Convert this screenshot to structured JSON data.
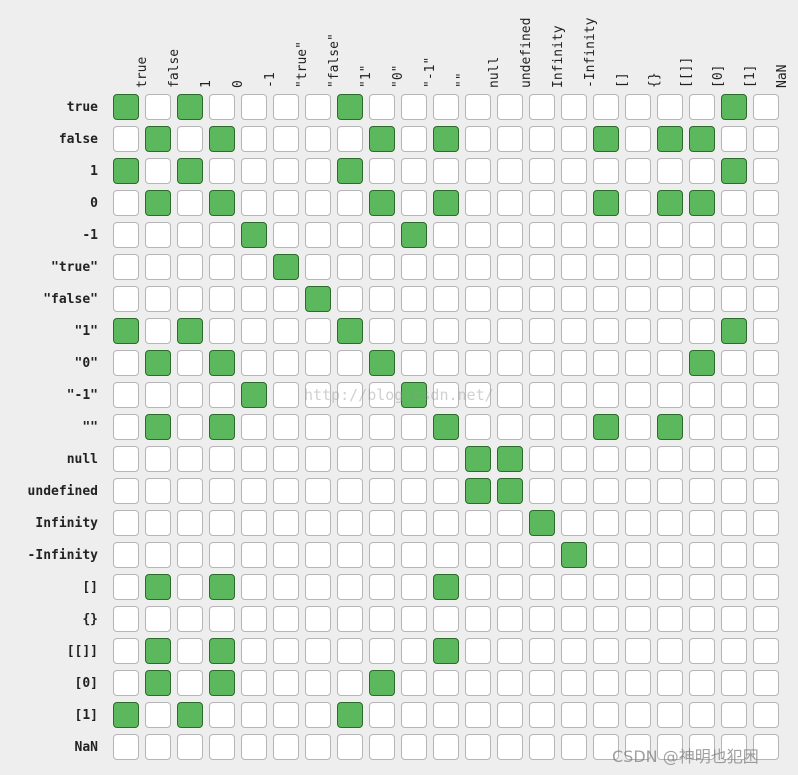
{
  "rows": [
    "true",
    "false",
    "1",
    "0",
    "-1",
    "\"true\"",
    "\"false\"",
    "\"1\"",
    "\"0\"",
    "\"-1\"",
    "\"\"",
    "null",
    "undefined",
    "Infinity",
    "-Infinity",
    "[]",
    "{}",
    "[[]]",
    "[0]",
    "[1]",
    "NaN"
  ],
  "columns": [
    "true",
    "false",
    "1",
    "0",
    "-1",
    "\"true\"",
    "\"false\"",
    "\"1\"",
    "\"0\"",
    "\"-1\"",
    "\"\"",
    "null",
    "undefined",
    "Infinity",
    "-Infinity",
    "[]",
    "{}",
    "[[]]",
    "[0]",
    "[1]",
    "NaN"
  ],
  "matrix": [
    [
      1,
      0,
      1,
      0,
      0,
      0,
      0,
      1,
      0,
      0,
      0,
      0,
      0,
      0,
      0,
      0,
      0,
      0,
      0,
      1,
      0
    ],
    [
      0,
      1,
      0,
      1,
      0,
      0,
      0,
      0,
      1,
      0,
      1,
      0,
      0,
      0,
      0,
      1,
      0,
      1,
      1,
      0,
      0
    ],
    [
      1,
      0,
      1,
      0,
      0,
      0,
      0,
      1,
      0,
      0,
      0,
      0,
      0,
      0,
      0,
      0,
      0,
      0,
      0,
      1,
      0
    ],
    [
      0,
      1,
      0,
      1,
      0,
      0,
      0,
      0,
      1,
      0,
      1,
      0,
      0,
      0,
      0,
      1,
      0,
      1,
      1,
      0,
      0
    ],
    [
      0,
      0,
      0,
      0,
      1,
      0,
      0,
      0,
      0,
      1,
      0,
      0,
      0,
      0,
      0,
      0,
      0,
      0,
      0,
      0,
      0
    ],
    [
      0,
      0,
      0,
      0,
      0,
      1,
      0,
      0,
      0,
      0,
      0,
      0,
      0,
      0,
      0,
      0,
      0,
      0,
      0,
      0,
      0
    ],
    [
      0,
      0,
      0,
      0,
      0,
      0,
      1,
      0,
      0,
      0,
      0,
      0,
      0,
      0,
      0,
      0,
      0,
      0,
      0,
      0,
      0
    ],
    [
      1,
      0,
      1,
      0,
      0,
      0,
      0,
      1,
      0,
      0,
      0,
      0,
      0,
      0,
      0,
      0,
      0,
      0,
      0,
      1,
      0
    ],
    [
      0,
      1,
      0,
      1,
      0,
      0,
      0,
      0,
      1,
      0,
      0,
      0,
      0,
      0,
      0,
      0,
      0,
      0,
      1,
      0,
      0
    ],
    [
      0,
      0,
      0,
      0,
      1,
      0,
      0,
      0,
      0,
      1,
      0,
      0,
      0,
      0,
      0,
      0,
      0,
      0,
      0,
      0,
      0
    ],
    [
      0,
      1,
      0,
      1,
      0,
      0,
      0,
      0,
      0,
      0,
      1,
      0,
      0,
      0,
      0,
      1,
      0,
      1,
      0,
      0,
      0
    ],
    [
      0,
      0,
      0,
      0,
      0,
      0,
      0,
      0,
      0,
      0,
      0,
      1,
      1,
      0,
      0,
      0,
      0,
      0,
      0,
      0,
      0
    ],
    [
      0,
      0,
      0,
      0,
      0,
      0,
      0,
      0,
      0,
      0,
      0,
      1,
      1,
      0,
      0,
      0,
      0,
      0,
      0,
      0,
      0
    ],
    [
      0,
      0,
      0,
      0,
      0,
      0,
      0,
      0,
      0,
      0,
      0,
      0,
      0,
      1,
      0,
      0,
      0,
      0,
      0,
      0,
      0
    ],
    [
      0,
      0,
      0,
      0,
      0,
      0,
      0,
      0,
      0,
      0,
      0,
      0,
      0,
      0,
      1,
      0,
      0,
      0,
      0,
      0,
      0
    ],
    [
      0,
      1,
      0,
      1,
      0,
      0,
      0,
      0,
      0,
      0,
      1,
      0,
      0,
      0,
      0,
      0,
      0,
      0,
      0,
      0,
      0
    ],
    [
      0,
      0,
      0,
      0,
      0,
      0,
      0,
      0,
      0,
      0,
      0,
      0,
      0,
      0,
      0,
      0,
      0,
      0,
      0,
      0,
      0
    ],
    [
      0,
      1,
      0,
      1,
      0,
      0,
      0,
      0,
      0,
      0,
      1,
      0,
      0,
      0,
      0,
      0,
      0,
      0,
      0,
      0,
      0
    ],
    [
      0,
      1,
      0,
      1,
      0,
      0,
      0,
      0,
      1,
      0,
      0,
      0,
      0,
      0,
      0,
      0,
      0,
      0,
      0,
      0,
      0
    ],
    [
      1,
      0,
      1,
      0,
      0,
      0,
      0,
      1,
      0,
      0,
      0,
      0,
      0,
      0,
      0,
      0,
      0,
      0,
      0,
      0,
      0
    ],
    [
      0,
      0,
      0,
      0,
      0,
      0,
      0,
      0,
      0,
      0,
      0,
      0,
      0,
      0,
      0,
      0,
      0,
      0,
      0,
      0,
      0
    ]
  ],
  "colors": {
    "equal": "#5cb85c",
    "equal_border": "#2d6b2d",
    "not_equal": "#ffffff",
    "cell_border": "#b5b5b5",
    "background": "#eeeeee"
  },
  "watermark": "http://blog.csdn.net/",
  "credit": "CSDN @神明也犯困"
}
